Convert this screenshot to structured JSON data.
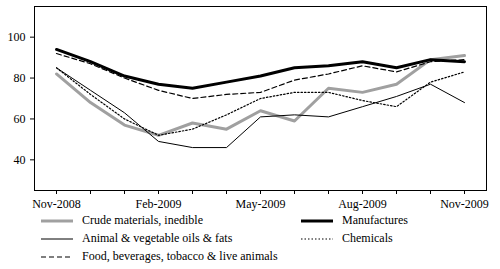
{
  "chart_data": {
    "type": "line",
    "categories": [
      "Nov-2008",
      null,
      null,
      "Feb-2009",
      null,
      null,
      "May-2009",
      null,
      null,
      "Aug-2009",
      null,
      null,
      "Nov-2009"
    ],
    "ylim": [
      25,
      115
    ],
    "yticks": [
      40,
      60,
      80,
      100
    ],
    "grid": false,
    "legend": "bottom",
    "series": [
      {
        "name": "Crude materials, inedible",
        "color": "#a0a0a0",
        "line_style": "solid",
        "values": [
          82,
          68,
          57,
          52,
          58,
          55,
          64,
          59,
          75,
          73,
          77,
          89,
          91
        ]
      },
      {
        "name": "Manufactures",
        "color": "#000000",
        "line_style": "solid",
        "values": [
          94,
          88,
          81,
          77,
          75,
          78,
          81,
          85,
          86,
          88,
          85,
          89,
          88
        ]
      },
      {
        "name": "Animal & vegetable oils & fats",
        "color": "#000000",
        "line_style": "solid",
        "values": [
          85,
          74,
          63,
          49,
          46,
          46,
          61,
          62,
          61,
          66,
          71,
          77,
          68
        ]
      },
      {
        "name": "Chemicals",
        "color": "#000000",
        "line_style": "dotted",
        "values": [
          85,
          72,
          60,
          52,
          55,
          62,
          70,
          73,
          73,
          69,
          66,
          78,
          83
        ]
      },
      {
        "name": "Food, beverages, tobacco & live animals",
        "color": "#000000",
        "line_style": "dashed",
        "values": [
          92,
          87,
          80,
          74,
          70,
          72,
          73,
          79,
          82,
          86,
          83,
          88,
          89
        ]
      }
    ]
  }
}
